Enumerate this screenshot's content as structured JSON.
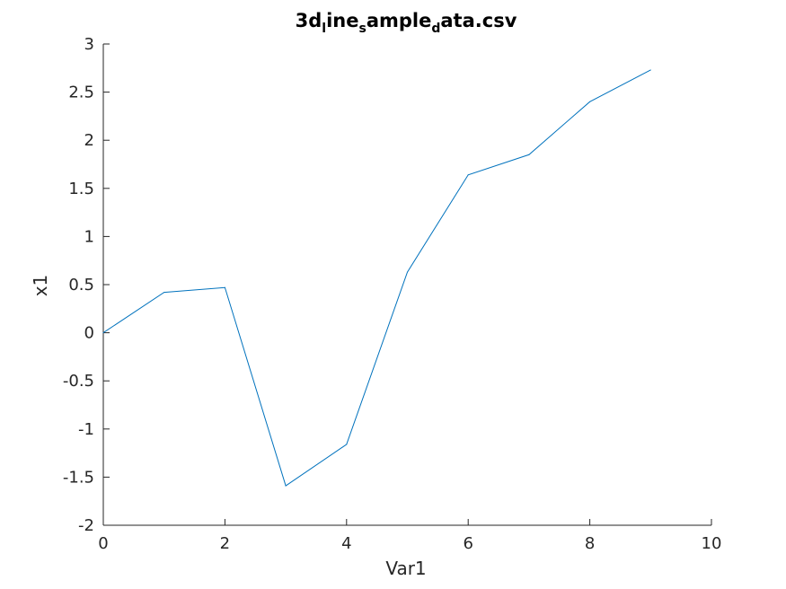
{
  "chart_data": {
    "type": "line",
    "title": {
      "parts": [
        {
          "text": "3d",
          "sub": false
        },
        {
          "text": "l",
          "sub": true
        },
        {
          "text": "ine",
          "sub": false
        },
        {
          "text": "s",
          "sub": true
        },
        {
          "text": "ample",
          "sub": false
        },
        {
          "text": "d",
          "sub": true
        },
        {
          "text": "ata.csv",
          "sub": false
        }
      ]
    },
    "xlabel": "Var1",
    "ylabel": "x1",
    "xlim": [
      0,
      10
    ],
    "ylim": [
      -2,
      3
    ],
    "xticks": [
      0,
      2,
      4,
      6,
      8,
      10
    ],
    "yticks": [
      -2,
      -1.5,
      -1,
      -0.5,
      0,
      0.5,
      1,
      1.5,
      2,
      2.5,
      3
    ],
    "grid": false,
    "line_color": "#0072BD",
    "axis_color": "#262626",
    "x": [
      0,
      1,
      2,
      3,
      4,
      5,
      6,
      7,
      8,
      9
    ],
    "y": [
      0.0,
      0.42,
      0.47,
      -1.59,
      -1.16,
      0.63,
      1.64,
      1.85,
      2.4,
      2.73
    ]
  }
}
